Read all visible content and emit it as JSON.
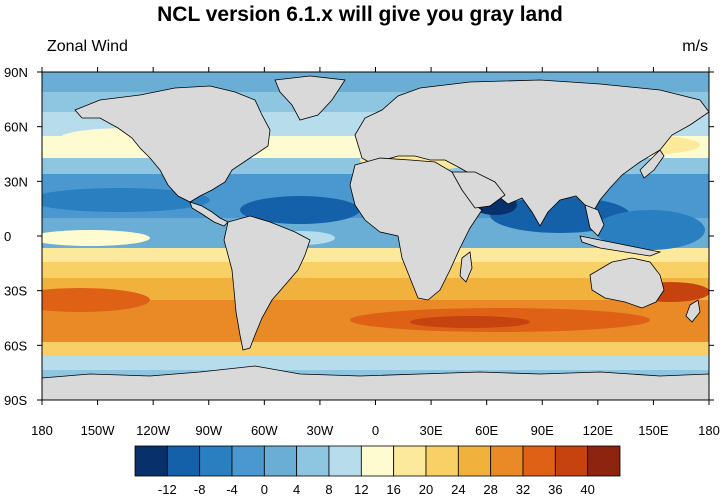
{
  "title": "NCL version 6.1.x will give you gray land",
  "left_string": "Zonal Wind",
  "right_string": "m/s",
  "map": {
    "projection": "cylindrical-equidistant",
    "land_fill": "#d9d9d9",
    "ocean_field": "zonal wind",
    "lat_range": [
      -90,
      90
    ],
    "lon_range": [
      -180,
      180
    ],
    "lat_ticks": [
      "90N",
      "60N",
      "30N",
      "0",
      "30S",
      "60S",
      "90S"
    ],
    "lon_ticks": [
      "180",
      "150W",
      "120W",
      "90W",
      "60W",
      "30W",
      "0",
      "30E",
      "60E",
      "90E",
      "120E",
      "150E",
      "180"
    ]
  },
  "colorbar": {
    "colors": [
      "#08306b",
      "#1561a9",
      "#2a7fc0",
      "#4a98cf",
      "#6aaed6",
      "#8ec5e1",
      "#b7dcec",
      "#fffbd1",
      "#fde99b",
      "#f8d066",
      "#f0b23d",
      "#e98a26",
      "#de6115",
      "#c6420f",
      "#8c2410"
    ],
    "labels": [
      "-12",
      "-8",
      "-4",
      "0",
      "4",
      "8",
      "12",
      "16",
      "20",
      "24",
      "28",
      "32",
      "36",
      "40"
    ]
  }
}
